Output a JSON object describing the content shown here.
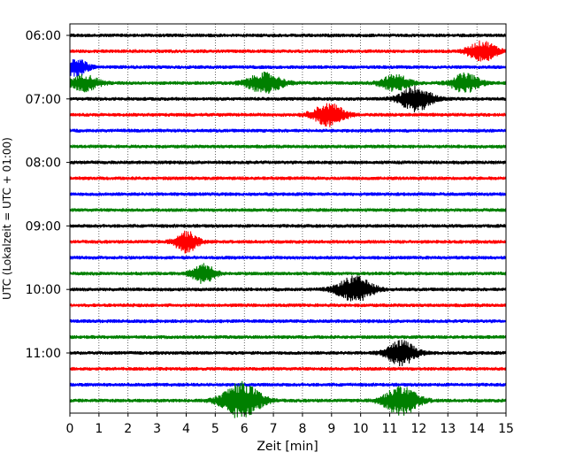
{
  "chart_data": {
    "type": "line",
    "title": "",
    "xlabel": "Zeit  [min]",
    "ylabel": "UTC (Lokalzeit = UTC + 01:00)",
    "xlim": [
      0,
      15
    ],
    "x_ticks": [
      "0",
      "1",
      "2",
      "3",
      "4",
      "5",
      "6",
      "7",
      "8",
      "9",
      "10",
      "11",
      "12",
      "13",
      "14",
      "15"
    ],
    "y_ticks": [
      "06:00",
      "07:00",
      "08:00",
      "09:00",
      "10:00",
      "11:00"
    ],
    "y_tick_trace_index": [
      0,
      4,
      8,
      12,
      16,
      20
    ],
    "grid": "vertical dotted",
    "trace_interval_minutes": 15,
    "colors": [
      "#000000",
      "#ff0000",
      "#0000ff",
      "#008000"
    ],
    "traces": [
      {
        "start": "06:00",
        "color": "#000000",
        "bursts": []
      },
      {
        "start": "06:15",
        "color": "#ff0000",
        "bursts": [
          {
            "t": 14.2,
            "amp": 1.6,
            "w": 0.5
          }
        ]
      },
      {
        "start": "06:30",
        "color": "#0000ff",
        "bursts": [
          {
            "t": 0.2,
            "amp": 1.5,
            "w": 0.4
          }
        ]
      },
      {
        "start": "06:45",
        "color": "#008000",
        "bursts": [
          {
            "t": 0.5,
            "amp": 1.3,
            "w": 0.5
          },
          {
            "t": 6.7,
            "amp": 1.6,
            "w": 0.6
          },
          {
            "t": 11.2,
            "amp": 1.3,
            "w": 0.5
          },
          {
            "t": 13.6,
            "amp": 1.5,
            "w": 0.5
          }
        ]
      },
      {
        "start": "07:00",
        "color": "#000000",
        "bursts": [
          {
            "t": 11.9,
            "amp": 2.0,
            "w": 0.55
          }
        ]
      },
      {
        "start": "07:15",
        "color": "#ff0000",
        "bursts": [
          {
            "t": 8.9,
            "amp": 1.8,
            "w": 0.55
          }
        ]
      },
      {
        "start": "07:30",
        "color": "#0000ff",
        "bursts": []
      },
      {
        "start": "07:45",
        "color": "#008000",
        "bursts": []
      },
      {
        "start": "08:00",
        "color": "#000000",
        "bursts": []
      },
      {
        "start": "08:15",
        "color": "#ff0000",
        "bursts": []
      },
      {
        "start": "08:30",
        "color": "#0000ff",
        "bursts": []
      },
      {
        "start": "08:45",
        "color": "#008000",
        "bursts": []
      },
      {
        "start": "09:00",
        "color": "#000000",
        "bursts": []
      },
      {
        "start": "09:15",
        "color": "#ff0000",
        "bursts": [
          {
            "t": 4.0,
            "amp": 1.7,
            "w": 0.4
          }
        ]
      },
      {
        "start": "09:30",
        "color": "#0000ff",
        "bursts": []
      },
      {
        "start": "09:45",
        "color": "#008000",
        "bursts": [
          {
            "t": 4.6,
            "amp": 1.5,
            "w": 0.4
          }
        ]
      },
      {
        "start": "10:00",
        "color": "#000000",
        "bursts": [
          {
            "t": 9.8,
            "amp": 2.1,
            "w": 0.6
          }
        ]
      },
      {
        "start": "10:15",
        "color": "#ff0000",
        "bursts": []
      },
      {
        "start": "10:30",
        "color": "#0000ff",
        "bursts": []
      },
      {
        "start": "10:45",
        "color": "#008000",
        "bursts": []
      },
      {
        "start": "11:00",
        "color": "#000000",
        "bursts": [
          {
            "t": 11.4,
            "amp": 2.0,
            "w": 0.5
          }
        ]
      },
      {
        "start": "11:15",
        "color": "#ff0000",
        "bursts": []
      },
      {
        "start": "11:30",
        "color": "#0000ff",
        "bursts": []
      },
      {
        "start": "11:45",
        "color": "#008000",
        "bursts": [
          {
            "t": 5.9,
            "amp": 3.0,
            "w": 0.65
          },
          {
            "t": 11.4,
            "amp": 2.3,
            "w": 0.6
          }
        ]
      }
    ]
  }
}
